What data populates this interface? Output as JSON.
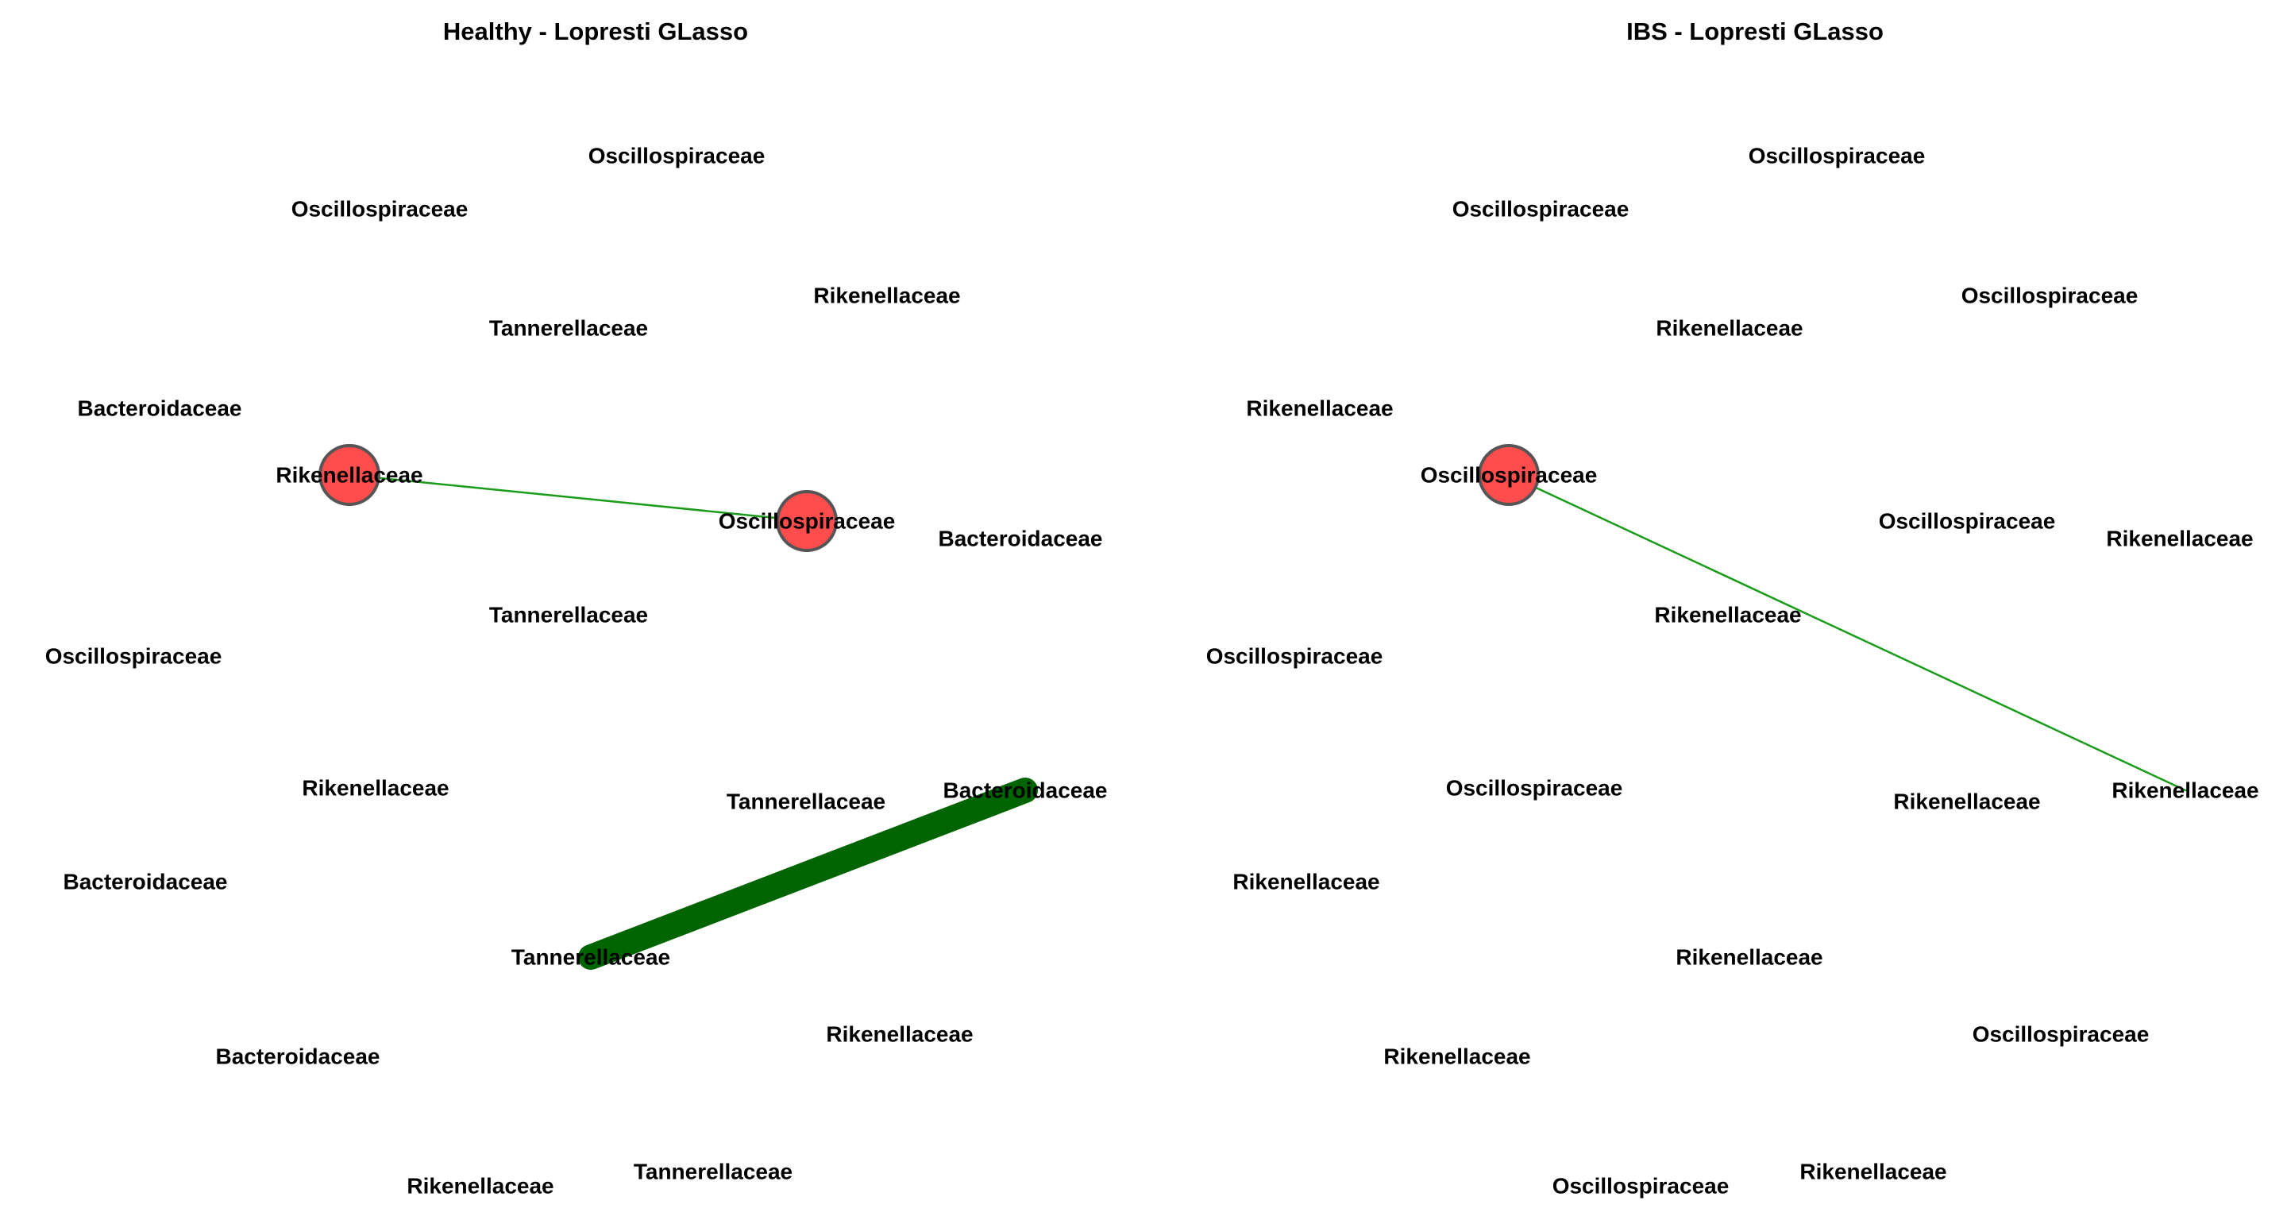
{
  "colors": {
    "node_fill": "#ff4d4d",
    "node_stroke": "#555555",
    "edge_thin": "#1a9c1a",
    "edge_thick": "#006400"
  },
  "panels": [
    {
      "title": "Healthy - Lopresti GLasso",
      "nodes": [
        {
          "label": "Oscillospiraceae",
          "highlighted": false
        },
        {
          "label": "Oscillospiraceae",
          "highlighted": false
        },
        {
          "label": "Rikenellaceae",
          "highlighted": false
        },
        {
          "label": "Tannerellaceae",
          "highlighted": false
        },
        {
          "label": "Bacteroidaceae",
          "highlighted": false
        },
        {
          "label": "Rikenellaceae",
          "highlighted": true
        },
        {
          "label": "Oscillospiraceae",
          "highlighted": true
        },
        {
          "label": "Bacteroidaceae",
          "highlighted": false
        },
        {
          "label": "Tannerellaceae",
          "highlighted": false
        },
        {
          "label": "Oscillospiraceae",
          "highlighted": false
        },
        {
          "label": "Rikenellaceae",
          "highlighted": false
        },
        {
          "label": "Tannerellaceae",
          "highlighted": false
        },
        {
          "label": "Bacteroidaceae",
          "highlighted": false
        },
        {
          "label": "Bacteroidaceae",
          "highlighted": false
        },
        {
          "label": "Tannerellaceae",
          "highlighted": false
        },
        {
          "label": "Rikenellaceae",
          "highlighted": false
        },
        {
          "label": "Bacteroidaceae",
          "highlighted": false
        },
        {
          "label": "Tannerellaceae",
          "highlighted": false
        },
        {
          "label": "Rikenellaceae",
          "highlighted": false
        }
      ],
      "edges": [
        {
          "source": 5,
          "target": 6,
          "weight": "thin"
        },
        {
          "source": 14,
          "target": 12,
          "weight": "thick"
        }
      ]
    },
    {
      "title": "IBS - Lopresti GLasso",
      "nodes": [
        {
          "label": "Oscillospiraceae",
          "highlighted": false
        },
        {
          "label": "Oscillospiraceae",
          "highlighted": false
        },
        {
          "label": "Oscillospiraceae",
          "highlighted": false
        },
        {
          "label": "Rikenellaceae",
          "highlighted": false
        },
        {
          "label": "Rikenellaceae",
          "highlighted": false
        },
        {
          "label": "Oscillospiraceae",
          "highlighted": true
        },
        {
          "label": "Oscillospiraceae",
          "highlighted": false
        },
        {
          "label": "Rikenellaceae",
          "highlighted": false
        },
        {
          "label": "Rikenellaceae",
          "highlighted": false
        },
        {
          "label": "Oscillospiraceae",
          "highlighted": false
        },
        {
          "label": "Oscillospiraceae",
          "highlighted": false
        },
        {
          "label": "Rikenellaceae",
          "highlighted": false
        },
        {
          "label": "Rikenellaceae",
          "highlighted": false
        },
        {
          "label": "Rikenellaceae",
          "highlighted": false
        },
        {
          "label": "Rikenellaceae",
          "highlighted": false
        },
        {
          "label": "Oscillospiraceae",
          "highlighted": false
        },
        {
          "label": "Rikenellaceae",
          "highlighted": false
        },
        {
          "label": "Rikenellaceae",
          "highlighted": false
        },
        {
          "label": "Oscillospiraceae",
          "highlighted": false
        }
      ],
      "edges": [
        {
          "source": 5,
          "target": 12,
          "weight": "thin"
        }
      ]
    }
  ]
}
